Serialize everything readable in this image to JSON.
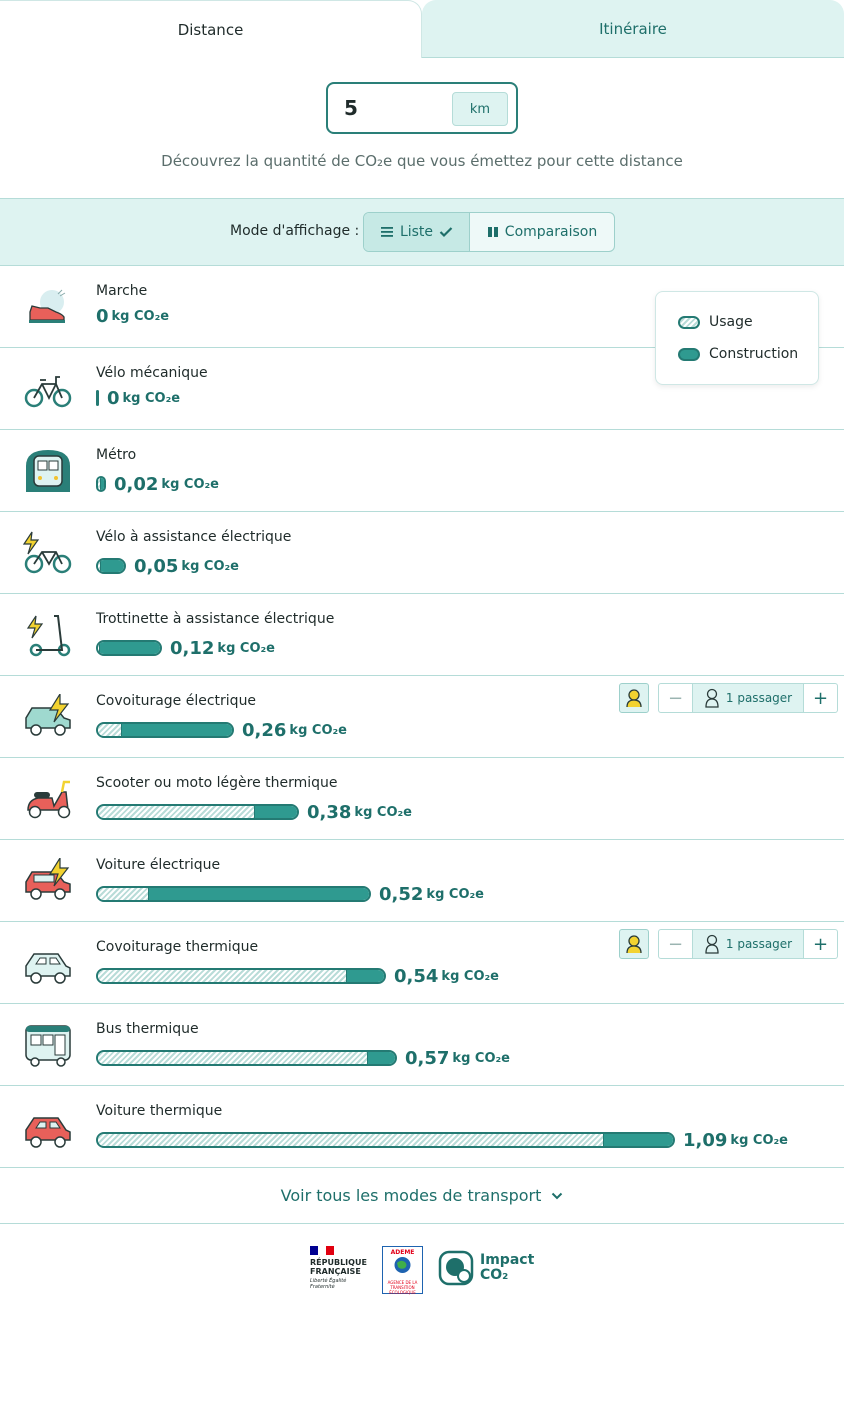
{
  "tabs": [
    {
      "label": "Distance",
      "active": true
    },
    {
      "label": "Itinéraire",
      "active": false
    }
  ],
  "distance": {
    "value": "5",
    "unit": "km"
  },
  "subtitle": "Découvrez la quantité de CO₂e que vous émettez pour cette distance",
  "display_mode": {
    "label": "Mode d'affichage :",
    "options": [
      {
        "label": "Liste",
        "selected": true
      },
      {
        "label": "Comparaison",
        "selected": false
      }
    ]
  },
  "legend": {
    "usage": "Usage",
    "construction": "Construction"
  },
  "unit_label": "kg CO₂e",
  "modes": [
    {
      "name": "Marche",
      "value": "0",
      "total": 0,
      "usage": 0,
      "construction": 0,
      "icon": "shoe-icon"
    },
    {
      "name": "Vélo mécanique",
      "value": "0",
      "total": 0,
      "usage": 0,
      "construction": 0,
      "icon": "bicycle-icon"
    },
    {
      "name": "Métro",
      "value": "0,02",
      "total": 0.02,
      "usage": 0.01,
      "construction": 0.01,
      "icon": "metro-icon"
    },
    {
      "name": "Vélo à assistance électrique",
      "value": "0,05",
      "total": 0.05,
      "usage": 0.005,
      "construction": 0.045,
      "icon": "electric-bike-icon"
    },
    {
      "name": "Trottinette à assistance électrique",
      "value": "0,12",
      "total": 0.12,
      "usage": 0.005,
      "construction": 0.115,
      "icon": "electric-scooter-icon"
    },
    {
      "name": "Covoiturage électrique",
      "value": "0,26",
      "total": 0.26,
      "usage": 0.04,
      "construction": 0.22,
      "icon": "electric-carpool-icon",
      "passengers": "1 passager"
    },
    {
      "name": "Scooter ou moto légère thermique",
      "value": "0,38",
      "total": 0.38,
      "usage": 0.3,
      "construction": 0.08,
      "icon": "motor-scooter-icon"
    },
    {
      "name": "Voiture électrique",
      "value": "0,52",
      "total": 0.52,
      "usage": 0.09,
      "construction": 0.43,
      "icon": "electric-car-icon"
    },
    {
      "name": "Covoiturage thermique",
      "value": "0,54",
      "total": 0.54,
      "usage": 0.48,
      "construction": 0.06,
      "icon": "carpool-car-icon",
      "passengers": "1 passager"
    },
    {
      "name": "Bus thermique",
      "value": "0,57",
      "total": 0.57,
      "usage": 0.52,
      "construction": 0.05,
      "icon": "bus-icon"
    },
    {
      "name": "Voiture thermique",
      "value": "1,09",
      "total": 1.09,
      "usage": 0.96,
      "construction": 0.13,
      "icon": "car-icon"
    }
  ],
  "see_all": "Voir tous les modes de transport",
  "footer": {
    "rf_line1": "RÉPUBLIQUE",
    "rf_line2": "FRANÇAISE",
    "rf_motto": "Liberté Égalité Fraternité",
    "ademe_name": "ADEME",
    "ademe_sub": "AGENCE DE LA TRANSITION ÉCOLOGIQUE",
    "impact_line1": "Impact",
    "impact_line2": "CO₂"
  },
  "colors": {
    "accent": "#2f9a90",
    "accent_dark": "#1e6f6a",
    "light_bg": "#def3f1",
    "border": "#b5dcd8"
  }
}
